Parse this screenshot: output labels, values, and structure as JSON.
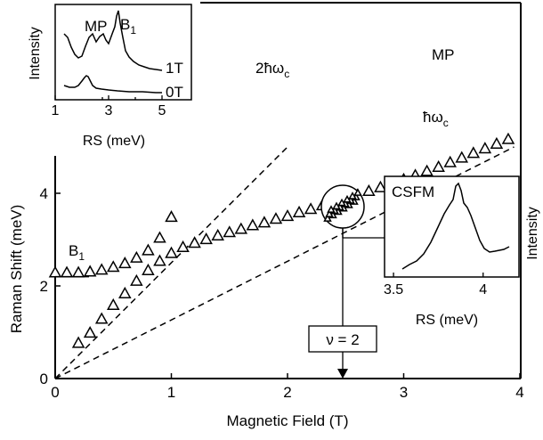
{
  "chart_data": [
    {
      "type": "scatter",
      "role": "main",
      "xlabel": "Magnetic Field (T)",
      "ylabel": "Raman Shift (meV)",
      "xlim": [
        0,
        4
      ],
      "ylim": [
        0,
        4.9
      ],
      "xticks": [
        0,
        1,
        2,
        3,
        4
      ],
      "yticks": [
        0,
        2,
        4
      ],
      "grid": false,
      "series": [
        {
          "name": "MP",
          "marker": "open-triangle",
          "x": [
            0.2,
            0.3,
            0.4,
            0.5,
            0.6,
            0.7,
            0.8,
            0.9,
            1.0,
            1.1,
            1.2,
            1.3,
            1.4,
            1.5,
            1.6,
            1.7,
            1.8,
            1.9,
            2.0,
            2.1,
            2.2,
            2.3,
            2.4,
            2.5,
            2.6,
            2.7,
            2.8,
            2.9,
            3.0,
            3.1,
            3.2,
            3.3,
            3.4,
            3.5,
            3.6,
            3.7,
            3.8,
            3.9
          ],
          "y": [
            0.78,
            1.0,
            1.3,
            1.6,
            1.85,
            2.12,
            2.35,
            2.55,
            2.72,
            2.85,
            2.94,
            3.02,
            3.1,
            3.17,
            3.24,
            3.32,
            3.38,
            3.46,
            3.52,
            3.6,
            3.67,
            3.75,
            3.82,
            3.9,
            3.97,
            4.06,
            4.14,
            4.22,
            4.31,
            4.4,
            4.49,
            4.58,
            4.68,
            4.78,
            4.88,
            4.98,
            5.08,
            5.18
          ]
        },
        {
          "name": "B1",
          "marker": "open-triangle",
          "x": [
            0.0,
            0.1,
            0.2,
            0.3,
            0.4,
            0.5,
            0.6,
            0.7,
            0.8,
            0.9,
            1.0
          ],
          "y": [
            2.3,
            2.3,
            2.3,
            2.32,
            2.36,
            2.42,
            2.5,
            2.62,
            2.78,
            3.05,
            3.5
          ]
        },
        {
          "name": "ħωc",
          "style": "dashed-line",
          "x": [
            0,
            3.95
          ],
          "y": [
            0,
            5.0
          ]
        },
        {
          "name": "2ħωc",
          "style": "dashed-line",
          "x": [
            0,
            2.0
          ],
          "y": [
            0,
            5.0
          ]
        }
      ],
      "annotations": {
        "mp": "MP",
        "b1_main": "B",
        "b1_main_sub": "1",
        "hwc_prefix": "ħω",
        "hwc_sub": "c",
        "twohwc_prefix": "2ħω",
        "twohwc_sub": "c",
        "nu2": "ν = 2",
        "nu2_field": 2.45
      },
      "b1_guide_level": 2.2
    },
    {
      "type": "line",
      "role": "inset-top-left",
      "xlabel": "RS (meV)",
      "ylabel": "Intensity",
      "xlim": [
        1,
        5
      ],
      "xticks": [
        1,
        3,
        5
      ],
      "series": [
        {
          "name": "1T",
          "label": "1T"
        },
        {
          "name": "0T",
          "label": "0T"
        }
      ],
      "annotations": {
        "mp": "MP",
        "b1": "B",
        "b1_sub": "1"
      }
    },
    {
      "type": "line",
      "role": "inset-right",
      "title": "CSFM",
      "xlabel": "RS (meV)",
      "ylabel": "Intensity",
      "xlim": [
        3.45,
        4.2
      ],
      "xticks": [
        3.5,
        4
      ],
      "xtick_labels": [
        "3.5",
        "4"
      ]
    }
  ]
}
